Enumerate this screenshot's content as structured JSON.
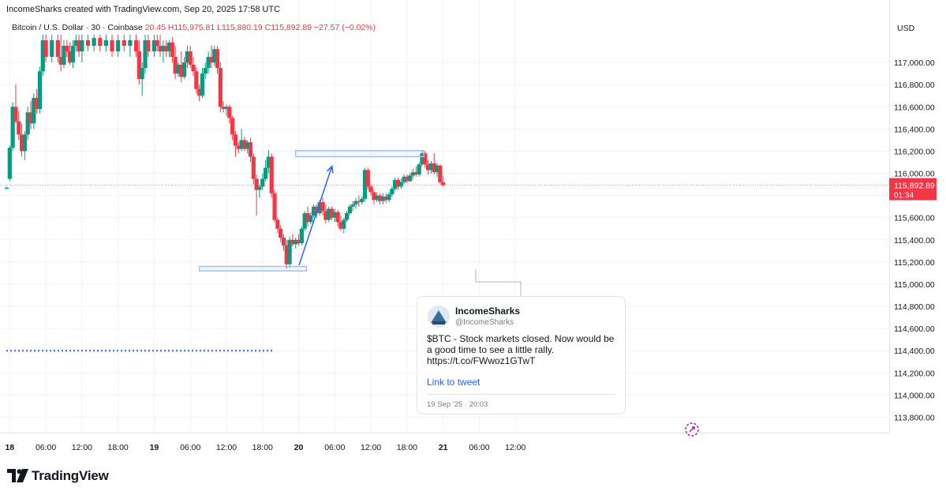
{
  "header": {
    "attribution": "IncomeSharks created with TradingView.com, Sep 20, 2025 17:58 UTC",
    "symbol_line": "Bitcoin / U.S. Dollar · 30 · Coinbase",
    "ohlc_fragment": "20.45  H115,975.81  L115,880.19  C115,892.89  −27.57 (−0.02%)"
  },
  "currency": "USD",
  "price_axis": {
    "ticks": [
      "117,000.00",
      "116,800.00",
      "116,600.00",
      "116,400.00",
      "116,200.00",
      "116,000.00",
      "115,800.00",
      "115,600.00",
      "115,400.00",
      "115,200.00",
      "115,000.00",
      "114,800.00",
      "114,600.00",
      "114,400.00",
      "114,200.00",
      "114,000.00",
      "113,800.00"
    ],
    "current_price": "115,892.89",
    "countdown": "01:34",
    "current_price_color": "#f23645"
  },
  "time_axis": {
    "ticks": [
      "18",
      "06:00",
      "12:00",
      "18:00",
      "19",
      "06:00",
      "12:00",
      "18:00",
      "20",
      "06:00",
      "12:00",
      "18:00",
      "21",
      "06:00",
      "12:00"
    ]
  },
  "colors": {
    "up": "#089981",
    "down": "#f23645",
    "annotation": "#2962ff",
    "box": "#a6c0e8"
  },
  "chart_data": {
    "type": "candlestick",
    "ylim": [
      113700,
      117250
    ],
    "x_unit": "hours since Sep 18 00:00",
    "xlim": [
      -0.8,
      79.3
    ],
    "interval_hours": 0.5,
    "last_price": 115892.89,
    "candles": [
      {
        "t": -0.5,
        "o": 115860,
        "h": 115880,
        "l": 115860,
        "c": 115870
      },
      {
        "t": 0,
        "o": 115950,
        "h": 116250,
        "l": 115930,
        "c": 116230
      },
      {
        "t": 0.5,
        "o": 116230,
        "h": 116640,
        "l": 116200,
        "c": 116600
      },
      {
        "t": 1,
        "o": 116600,
        "h": 116800,
        "l": 116450,
        "c": 116470
      },
      {
        "t": 1.5,
        "o": 116470,
        "h": 116560,
        "l": 116300,
        "c": 116350
      },
      {
        "t": 2,
        "o": 116350,
        "h": 116450,
        "l": 116150,
        "c": 116200
      },
      {
        "t": 2.5,
        "o": 116200,
        "h": 116380,
        "l": 116120,
        "c": 116350
      },
      {
        "t": 3,
        "o": 116350,
        "h": 116600,
        "l": 116300,
        "c": 116550
      },
      {
        "t": 3.5,
        "o": 116550,
        "h": 116650,
        "l": 116400,
        "c": 116450
      },
      {
        "t": 4,
        "o": 116450,
        "h": 116720,
        "l": 116400,
        "c": 116680
      },
      {
        "t": 4.5,
        "o": 116680,
        "h": 116760,
        "l": 116540,
        "c": 116580
      },
      {
        "t": 5,
        "o": 116580,
        "h": 116960,
        "l": 116540,
        "c": 116920
      },
      {
        "t": 5.5,
        "o": 116920,
        "h": 117250,
        "l": 116880,
        "c": 117200
      },
      {
        "t": 6,
        "o": 117200,
        "h": 117250,
        "l": 117000,
        "c": 117050
      },
      {
        "t": 7,
        "o": 117050,
        "h": 117250,
        "l": 117000,
        "c": 117200
      },
      {
        "t": 8,
        "o": 117200,
        "h": 117250,
        "l": 117000,
        "c": 117050
      },
      {
        "t": 8.5,
        "o": 117050,
        "h": 117250,
        "l": 116920,
        "c": 116980
      },
      {
        "t": 9,
        "o": 116980,
        "h": 117200,
        "l": 116950,
        "c": 117150
      },
      {
        "t": 9.5,
        "o": 117150,
        "h": 117200,
        "l": 117050,
        "c": 117100
      },
      {
        "t": 10,
        "o": 117100,
        "h": 117180,
        "l": 116980,
        "c": 117000
      },
      {
        "t": 10.5,
        "o": 117000,
        "h": 117200,
        "l": 116950,
        "c": 117150
      },
      {
        "t": 11,
        "o": 117150,
        "h": 117250,
        "l": 117100,
        "c": 117200
      },
      {
        "t": 11.5,
        "o": 117200,
        "h": 117250,
        "l": 117050,
        "c": 117100
      },
      {
        "t": 12,
        "o": 117100,
        "h": 117250,
        "l": 117000,
        "c": 117200
      },
      {
        "t": 13,
        "o": 117200,
        "h": 117250,
        "l": 117100,
        "c": 117150
      },
      {
        "t": 14,
        "o": 117150,
        "h": 117250,
        "l": 117100,
        "c": 117220
      },
      {
        "t": 15,
        "o": 117220,
        "h": 117250,
        "l": 117100,
        "c": 117150
      },
      {
        "t": 16,
        "o": 117150,
        "h": 117250,
        "l": 117100,
        "c": 117200
      },
      {
        "t": 17,
        "o": 117200,
        "h": 117250,
        "l": 117050,
        "c": 117100
      },
      {
        "t": 18,
        "o": 117100,
        "h": 117250,
        "l": 117050,
        "c": 117200
      },
      {
        "t": 19,
        "o": 117200,
        "h": 117250,
        "l": 117100,
        "c": 117150
      },
      {
        "t": 20,
        "o": 117150,
        "h": 117250,
        "l": 117050,
        "c": 117200
      },
      {
        "t": 21,
        "o": 117200,
        "h": 117250,
        "l": 117050,
        "c": 117100
      },
      {
        "t": 21.5,
        "o": 117100,
        "h": 117200,
        "l": 116800,
        "c": 116850
      },
      {
        "t": 22,
        "o": 116850,
        "h": 117000,
        "l": 116700,
        "c": 116950
      },
      {
        "t": 22.5,
        "o": 116950,
        "h": 117250,
        "l": 116900,
        "c": 117200
      },
      {
        "t": 23,
        "o": 117200,
        "h": 117250,
        "l": 117050,
        "c": 117100
      },
      {
        "t": 24,
        "o": 117100,
        "h": 117250,
        "l": 117050,
        "c": 117200
      },
      {
        "t": 24.5,
        "o": 117200,
        "h": 117250,
        "l": 117100,
        "c": 117150
      },
      {
        "t": 25,
        "o": 117150,
        "h": 117250,
        "l": 117050,
        "c": 117100
      },
      {
        "t": 25.5,
        "o": 117100,
        "h": 117200,
        "l": 117000,
        "c": 117150
      },
      {
        "t": 26,
        "o": 117150,
        "h": 117200,
        "l": 117050,
        "c": 117100
      },
      {
        "t": 26.5,
        "o": 117100,
        "h": 117200,
        "l": 117050,
        "c": 117180
      },
      {
        "t": 27,
        "o": 117180,
        "h": 117230,
        "l": 117000,
        "c": 117050
      },
      {
        "t": 27.5,
        "o": 117050,
        "h": 117150,
        "l": 116850,
        "c": 116900
      },
      {
        "t": 28,
        "o": 116900,
        "h": 117000,
        "l": 116870,
        "c": 116980
      },
      {
        "t": 28.5,
        "o": 116980,
        "h": 117100,
        "l": 116820,
        "c": 116870
      },
      {
        "t": 29,
        "o": 116870,
        "h": 117050,
        "l": 116850,
        "c": 117000
      },
      {
        "t": 29.5,
        "o": 117000,
        "h": 117150,
        "l": 116950,
        "c": 117100
      },
      {
        "t": 30,
        "o": 117100,
        "h": 117150,
        "l": 116950,
        "c": 116980
      },
      {
        "t": 30.5,
        "o": 116980,
        "h": 117050,
        "l": 116880,
        "c": 116920
      },
      {
        "t": 31,
        "o": 116920,
        "h": 116960,
        "l": 116720,
        "c": 116760
      },
      {
        "t": 31.5,
        "o": 116760,
        "h": 116800,
        "l": 116650,
        "c": 116700
      },
      {
        "t": 32,
        "o": 116700,
        "h": 116950,
        "l": 116680,
        "c": 116900
      },
      {
        "t": 32.5,
        "o": 116900,
        "h": 117000,
        "l": 116850,
        "c": 116950
      },
      {
        "t": 33,
        "o": 116950,
        "h": 117100,
        "l": 116900,
        "c": 117050
      },
      {
        "t": 33.5,
        "o": 117050,
        "h": 117150,
        "l": 116950,
        "c": 117000
      },
      {
        "t": 34,
        "o": 117000,
        "h": 117150,
        "l": 116970,
        "c": 117120
      },
      {
        "t": 34.5,
        "o": 117120,
        "h": 117150,
        "l": 116900,
        "c": 116950
      },
      {
        "t": 35,
        "o": 116950,
        "h": 117000,
        "l": 116550,
        "c": 116600
      },
      {
        "t": 35.5,
        "o": 116600,
        "h": 116650,
        "l": 116550,
        "c": 116580
      },
      {
        "t": 36,
        "o": 116580,
        "h": 116620,
        "l": 116520,
        "c": 116600
      },
      {
        "t": 36.5,
        "o": 116600,
        "h": 116620,
        "l": 116450,
        "c": 116500
      },
      {
        "t": 37,
        "o": 116500,
        "h": 116520,
        "l": 116300,
        "c": 116350
      },
      {
        "t": 37.5,
        "o": 116350,
        "h": 116380,
        "l": 116150,
        "c": 116250
      },
      {
        "t": 38,
        "o": 116250,
        "h": 116280,
        "l": 116180,
        "c": 116220
      },
      {
        "t": 38.5,
        "o": 116220,
        "h": 116400,
        "l": 116200,
        "c": 116300
      },
      {
        "t": 39,
        "o": 116300,
        "h": 116330,
        "l": 116200,
        "c": 116220
      },
      {
        "t": 39.5,
        "o": 116220,
        "h": 116300,
        "l": 116180,
        "c": 116280
      },
      {
        "t": 40,
        "o": 116280,
        "h": 116320,
        "l": 116100,
        "c": 116150
      },
      {
        "t": 40.5,
        "o": 116150,
        "h": 116180,
        "l": 115900,
        "c": 115950
      },
      {
        "t": 41,
        "o": 115950,
        "h": 115990,
        "l": 115620,
        "c": 115850
      },
      {
        "t": 41.5,
        "o": 115850,
        "h": 115900,
        "l": 115780,
        "c": 115880
      },
      {
        "t": 42,
        "o": 115880,
        "h": 116000,
        "l": 115850,
        "c": 115950
      },
      {
        "t": 42.5,
        "o": 115950,
        "h": 116120,
        "l": 115930,
        "c": 116050
      },
      {
        "t": 43,
        "o": 116050,
        "h": 116210,
        "l": 116000,
        "c": 116150
      },
      {
        "t": 43.5,
        "o": 116150,
        "h": 116180,
        "l": 115780,
        "c": 115820
      },
      {
        "t": 44,
        "o": 115820,
        "h": 115850,
        "l": 115560,
        "c": 115580
      },
      {
        "t": 44.5,
        "o": 115580,
        "h": 115600,
        "l": 115460,
        "c": 115500
      },
      {
        "t": 45,
        "o": 115500,
        "h": 115530,
        "l": 115380,
        "c": 115420
      },
      {
        "t": 45.5,
        "o": 115420,
        "h": 115450,
        "l": 115300,
        "c": 115350
      },
      {
        "t": 46,
        "o": 115350,
        "h": 115400,
        "l": 115140,
        "c": 115180
      },
      {
        "t": 46.5,
        "o": 115180,
        "h": 115430,
        "l": 115150,
        "c": 115400
      },
      {
        "t": 47,
        "o": 115400,
        "h": 115450,
        "l": 115340,
        "c": 115360
      },
      {
        "t": 47.5,
        "o": 115360,
        "h": 115420,
        "l": 115320,
        "c": 115400
      },
      {
        "t": 48,
        "o": 115400,
        "h": 115450,
        "l": 115350,
        "c": 115370
      },
      {
        "t": 48.5,
        "o": 115370,
        "h": 115520,
        "l": 115350,
        "c": 115500
      },
      {
        "t": 49,
        "o": 115500,
        "h": 115660,
        "l": 115480,
        "c": 115640
      },
      {
        "t": 49.5,
        "o": 115640,
        "h": 115700,
        "l": 115520,
        "c": 115560
      },
      {
        "t": 50,
        "o": 115560,
        "h": 115650,
        "l": 115540,
        "c": 115620
      },
      {
        "t": 50.5,
        "o": 115620,
        "h": 115720,
        "l": 115600,
        "c": 115700
      },
      {
        "t": 51,
        "o": 115700,
        "h": 115720,
        "l": 115600,
        "c": 115640
      },
      {
        "t": 51.5,
        "o": 115640,
        "h": 115760,
        "l": 115620,
        "c": 115740
      },
      {
        "t": 52,
        "o": 115740,
        "h": 115780,
        "l": 115620,
        "c": 115660
      },
      {
        "t": 52.5,
        "o": 115660,
        "h": 115720,
        "l": 115550,
        "c": 115580
      },
      {
        "t": 53,
        "o": 115580,
        "h": 115700,
        "l": 115560,
        "c": 115680
      },
      {
        "t": 53.5,
        "o": 115680,
        "h": 115700,
        "l": 115580,
        "c": 115600
      },
      {
        "t": 54,
        "o": 115600,
        "h": 115680,
        "l": 115560,
        "c": 115650
      },
      {
        "t": 54.5,
        "o": 115650,
        "h": 115670,
        "l": 115520,
        "c": 115560
      },
      {
        "t": 55,
        "o": 115560,
        "h": 115620,
        "l": 115480,
        "c": 115500
      },
      {
        "t": 55.5,
        "o": 115500,
        "h": 115600,
        "l": 115460,
        "c": 115580
      },
      {
        "t": 56,
        "o": 115580,
        "h": 115660,
        "l": 115560,
        "c": 115640
      },
      {
        "t": 56.5,
        "o": 115640,
        "h": 115720,
        "l": 115620,
        "c": 115700
      },
      {
        "t": 57,
        "o": 115700,
        "h": 115750,
        "l": 115660,
        "c": 115720
      },
      {
        "t": 57.5,
        "o": 115720,
        "h": 115780,
        "l": 115680,
        "c": 115750
      },
      {
        "t": 58,
        "o": 115750,
        "h": 115800,
        "l": 115700,
        "c": 115740
      },
      {
        "t": 58.5,
        "o": 115740,
        "h": 115790,
        "l": 115720,
        "c": 115770
      },
      {
        "t": 59,
        "o": 115770,
        "h": 116050,
        "l": 115750,
        "c": 116030
      },
      {
        "t": 59.5,
        "o": 116030,
        "h": 116050,
        "l": 115850,
        "c": 115880
      },
      {
        "t": 60,
        "o": 115880,
        "h": 115900,
        "l": 115800,
        "c": 115830
      },
      {
        "t": 60.5,
        "o": 115830,
        "h": 115850,
        "l": 115720,
        "c": 115760
      },
      {
        "t": 61,
        "o": 115760,
        "h": 115830,
        "l": 115740,
        "c": 115800
      },
      {
        "t": 61.5,
        "o": 115800,
        "h": 115820,
        "l": 115720,
        "c": 115750
      },
      {
        "t": 62,
        "o": 115750,
        "h": 115820,
        "l": 115720,
        "c": 115790
      },
      {
        "t": 62.5,
        "o": 115790,
        "h": 115820,
        "l": 115730,
        "c": 115760
      },
      {
        "t": 63,
        "o": 115760,
        "h": 115830,
        "l": 115740,
        "c": 115810
      },
      {
        "t": 63.5,
        "o": 115810,
        "h": 115880,
        "l": 115790,
        "c": 115860
      },
      {
        "t": 64,
        "o": 115860,
        "h": 115960,
        "l": 115840,
        "c": 115940
      },
      {
        "t": 64.5,
        "o": 115940,
        "h": 115960,
        "l": 115850,
        "c": 115880
      },
      {
        "t": 65,
        "o": 115880,
        "h": 115950,
        "l": 115860,
        "c": 115920
      },
      {
        "t": 65.5,
        "o": 115920,
        "h": 115990,
        "l": 115900,
        "c": 115970
      },
      {
        "t": 66,
        "o": 115970,
        "h": 115990,
        "l": 115910,
        "c": 115930
      },
      {
        "t": 66.5,
        "o": 115930,
        "h": 116000,
        "l": 115920,
        "c": 115980
      },
      {
        "t": 67,
        "o": 115980,
        "h": 116040,
        "l": 115950,
        "c": 116010
      },
      {
        "t": 67.5,
        "o": 116010,
        "h": 116060,
        "l": 115970,
        "c": 115990
      },
      {
        "t": 68,
        "o": 115990,
        "h": 116100,
        "l": 115970,
        "c": 116080
      },
      {
        "t": 68.5,
        "o": 116080,
        "h": 116200,
        "l": 116060,
        "c": 116180
      },
      {
        "t": 69,
        "o": 116180,
        "h": 116200,
        "l": 116050,
        "c": 116080
      },
      {
        "t": 69.5,
        "o": 116080,
        "h": 116120,
        "l": 115990,
        "c": 116030
      },
      {
        "t": 70,
        "o": 116030,
        "h": 116110,
        "l": 116000,
        "c": 116090
      },
      {
        "t": 70.5,
        "o": 116090,
        "h": 116180,
        "l": 115990,
        "c": 116010
      },
      {
        "t": 71,
        "o": 116010,
        "h": 116090,
        "l": 115970,
        "c": 116070
      },
      {
        "t": 71.5,
        "o": 116070,
        "h": 116080,
        "l": 115900,
        "c": 115920
      },
      {
        "t": 72,
        "o": 115920,
        "h": 115975.81,
        "l": 115880.19,
        "c": 115892.89
      }
    ]
  },
  "drawings": {
    "dotted_line_level": 114400,
    "upper_box": {
      "t_start": 47.5,
      "t_end": 68.8,
      "top": 116205,
      "bottom": 116150
    },
    "lower_box": {
      "t_start": 31.5,
      "t_end": 49.3,
      "top": 115160,
      "bottom": 115120
    },
    "arrow": {
      "t_from": 46.5,
      "p_from": 115230,
      "t_to": 47.5,
      "p_to": 116150
    }
  },
  "tweet": {
    "name": "IncomeSharks",
    "handle": "@IncomeSharks",
    "text": "$BTC - Stock markets closed. Now would be a good time to see a little rally. https://t.co/FWwoz1GTwT",
    "link_label": "Link to tweet",
    "date": "19 Sep '25 · 20:03"
  },
  "branding": "TradingView"
}
